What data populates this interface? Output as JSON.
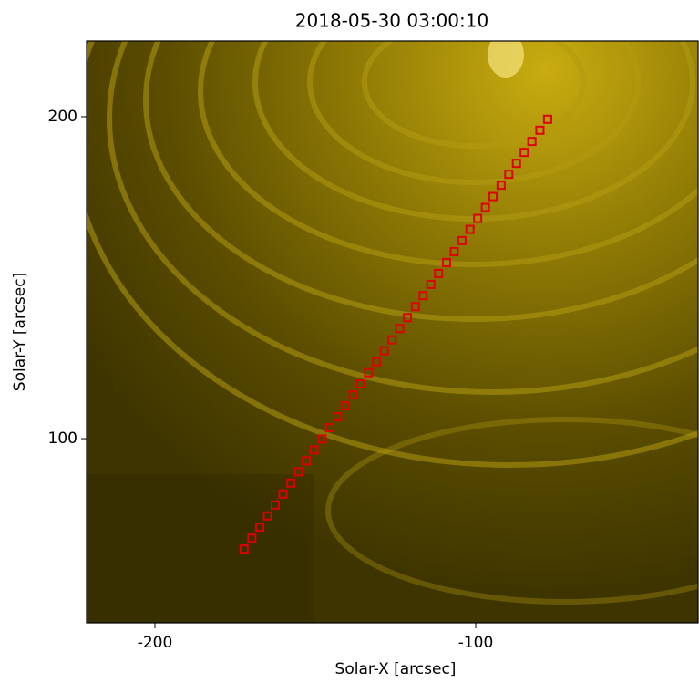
{
  "chart_data": {
    "type": "scatter",
    "title": "2018-05-30 03:00:10",
    "x_label": "Solar-X [arcsec]",
    "y_label": "Solar-Y [arcsec]",
    "xlim": [
      -221.3,
      -30.7
    ],
    "ylim": [
      42.8,
      223.5
    ],
    "xticks": [
      -200,
      -100
    ],
    "yticks": [
      100,
      200
    ],
    "marker": "square",
    "color": "#e00000",
    "x": [
      -172.2,
      -169.8,
      -167.3,
      -164.9,
      -162.5,
      -160.1,
      -157.6,
      -155.2,
      -152.8,
      -150.4,
      -147.9,
      -145.5,
      -143.1,
      -140.7,
      -138.2,
      -135.8,
      -133.4,
      -130.9,
      -128.5,
      -126.1,
      -123.7,
      -121.3,
      -118.8,
      -116.4,
      -114.0,
      -111.6,
      -109.1,
      -106.7,
      -104.3,
      -101.8,
      -99.4,
      -97.0,
      -94.6,
      -92.1,
      -89.7,
      -87.3,
      -84.9,
      -82.5,
      -80.0,
      -77.6
    ],
    "values": [
      65.7,
      69.1,
      72.5,
      76.0,
      79.4,
      82.8,
      86.2,
      89.7,
      93.1,
      96.5,
      99.9,
      103.4,
      106.8,
      110.2,
      113.6,
      117.0,
      120.5,
      123.9,
      127.3,
      130.7,
      134.2,
      137.6,
      141.0,
      144.4,
      147.9,
      151.3,
      154.7,
      158.1,
      161.5,
      165.0,
      168.4,
      171.8,
      175.2,
      178.7,
      182.1,
      185.5,
      188.9,
      192.3,
      195.8,
      199.2
    ]
  }
}
